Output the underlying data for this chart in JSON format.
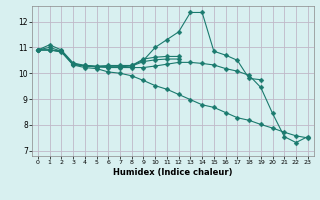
{
  "xlabel": "Humidex (Indice chaleur)",
  "bg_color": "#d8f0f0",
  "grid_color": "#c0b8c8",
  "line_color": "#1a7a6e",
  "xlim": [
    -0.5,
    23.5
  ],
  "ylim": [
    6.8,
    12.6
  ],
  "xticks": [
    0,
    1,
    2,
    3,
    4,
    5,
    6,
    7,
    8,
    9,
    10,
    11,
    12,
    13,
    14,
    15,
    16,
    17,
    18,
    19,
    20,
    21,
    22,
    23
  ],
  "yticks": [
    7,
    8,
    9,
    10,
    11,
    12
  ],
  "lines": [
    {
      "x": [
        0,
        1,
        2,
        3,
        4,
        5,
        6,
        7,
        8,
        9,
        10,
        11,
        12,
        13,
        14,
        15,
        16,
        17,
        18,
        19,
        20
      ],
      "y": [
        10.9,
        11.1,
        10.9,
        10.4,
        10.3,
        10.25,
        10.3,
        10.3,
        10.3,
        10.5,
        11.0,
        11.3,
        11.6,
        12.35,
        12.35,
        10.85,
        10.7,
        10.5,
        9.8,
        9.75,
        null
      ]
    },
    {
      "x": [
        0,
        1,
        2,
        3,
        4,
        5,
        6,
        7,
        8,
        9,
        10,
        11,
        12
      ],
      "y": [
        10.9,
        11.0,
        10.85,
        10.35,
        10.3,
        10.28,
        10.28,
        10.28,
        10.3,
        10.55,
        10.62,
        10.65,
        10.65
      ]
    },
    {
      "x": [
        0,
        1,
        2,
        3,
        4,
        5,
        6,
        7,
        8,
        9,
        10,
        11,
        12
      ],
      "y": [
        10.9,
        10.9,
        10.85,
        10.35,
        10.28,
        10.25,
        10.25,
        10.25,
        10.28,
        10.45,
        10.52,
        10.55,
        10.55
      ]
    },
    {
      "x": [
        0,
        1,
        2,
        3,
        4,
        5,
        6,
        7,
        8,
        9,
        10,
        11,
        12,
        13,
        14,
        15,
        16,
        17,
        18,
        19,
        20,
        21,
        22,
        23
      ],
      "y": [
        10.9,
        10.9,
        10.85,
        10.35,
        10.28,
        10.25,
        10.22,
        10.22,
        10.22,
        10.22,
        10.28,
        10.35,
        10.42,
        10.42,
        10.38,
        10.32,
        10.18,
        10.08,
        9.92,
        9.45,
        8.45,
        7.55,
        7.32,
        7.55
      ]
    },
    {
      "x": [
        0,
        1,
        2,
        3,
        4,
        5,
        6,
        7,
        8,
        9,
        10,
        11,
        12,
        13,
        14,
        15,
        16,
        17,
        18,
        19,
        20,
        21,
        22,
        23
      ],
      "y": [
        10.9,
        10.9,
        10.82,
        10.32,
        10.22,
        10.18,
        10.05,
        10.0,
        9.9,
        9.72,
        9.52,
        9.38,
        9.18,
        8.98,
        8.78,
        8.68,
        8.48,
        8.28,
        8.18,
        8.02,
        7.88,
        7.72,
        7.58,
        7.5
      ]
    }
  ]
}
